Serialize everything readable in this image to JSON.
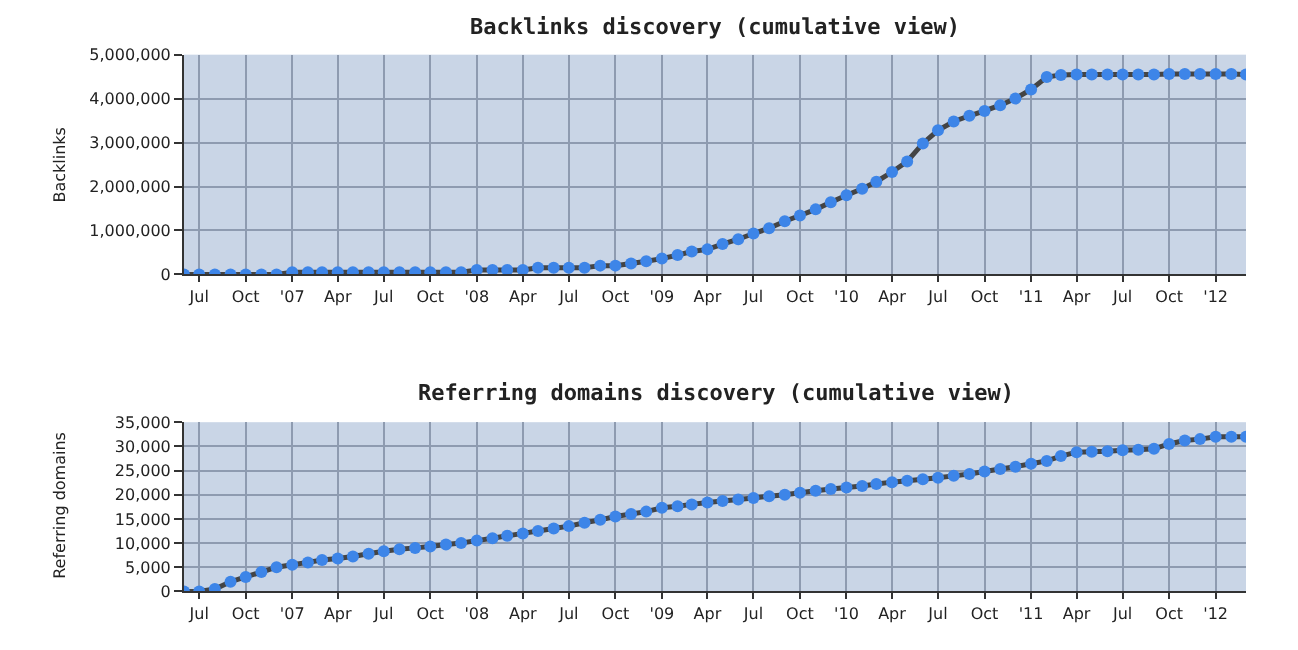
{
  "chart_data": [
    {
      "type": "line",
      "title": "Backlinks discovery (cumulative view)",
      "ylabel": "Backlinks",
      "grid": true,
      "marker": "circle",
      "line_style": "solid",
      "xlim": [
        "2006-06",
        "2012-03"
      ],
      "ylim": [
        0,
        5000000
      ],
      "yticks": [
        {
          "value": 0,
          "label": "0"
        },
        {
          "value": 1000000,
          "label": "1,000,000"
        },
        {
          "value": 2000000,
          "label": "2,000,000"
        },
        {
          "value": 3000000,
          "label": "3,000,000"
        },
        {
          "value": 4000000,
          "label": "4,000,000"
        },
        {
          "value": 5000000,
          "label": "5,000,000"
        }
      ],
      "xticks": [
        {
          "value": "2006-07",
          "label": "Jul"
        },
        {
          "value": "2006-10",
          "label": "Oct"
        },
        {
          "value": "2007-01",
          "label": "'07"
        },
        {
          "value": "2007-04",
          "label": "Apr"
        },
        {
          "value": "2007-07",
          "label": "Jul"
        },
        {
          "value": "2007-10",
          "label": "Oct"
        },
        {
          "value": "2008-01",
          "label": "'08"
        },
        {
          "value": "2008-04",
          "label": "Apr"
        },
        {
          "value": "2008-07",
          "label": "Jul"
        },
        {
          "value": "2008-10",
          "label": "Oct"
        },
        {
          "value": "2009-01",
          "label": "'09"
        },
        {
          "value": "2009-04",
          "label": "Apr"
        },
        {
          "value": "2009-07",
          "label": "Jul"
        },
        {
          "value": "2009-10",
          "label": "Oct"
        },
        {
          "value": "2010-01",
          "label": "'10"
        },
        {
          "value": "2010-04",
          "label": "Apr"
        },
        {
          "value": "2010-07",
          "label": "Jul"
        },
        {
          "value": "2010-10",
          "label": "Oct"
        },
        {
          "value": "2011-01",
          "label": "'11"
        },
        {
          "value": "2011-04",
          "label": "Apr"
        },
        {
          "value": "2011-07",
          "label": "Jul"
        },
        {
          "value": "2011-10",
          "label": "Oct"
        },
        {
          "value": "2012-01",
          "label": "'12"
        }
      ],
      "series": [
        {
          "color": "#3d85e8",
          "x": [
            "2006-06",
            "2006-07",
            "2006-08",
            "2006-09",
            "2006-10",
            "2006-11",
            "2006-12",
            "2007-01",
            "2007-02",
            "2007-03",
            "2007-04",
            "2007-05",
            "2007-06",
            "2007-07",
            "2007-08",
            "2007-09",
            "2007-10",
            "2007-11",
            "2007-12",
            "2008-01",
            "2008-02",
            "2008-03",
            "2008-04",
            "2008-05",
            "2008-06",
            "2008-07",
            "2008-08",
            "2008-09",
            "2008-10",
            "2008-11",
            "2008-12",
            "2009-01",
            "2009-02",
            "2009-03",
            "2009-04",
            "2009-05",
            "2009-06",
            "2009-07",
            "2009-08",
            "2009-09",
            "2009-10",
            "2009-11",
            "2009-12",
            "2010-01",
            "2010-02",
            "2010-03",
            "2010-04",
            "2010-05",
            "2010-06",
            "2010-07",
            "2010-08",
            "2010-09",
            "2010-10",
            "2010-11",
            "2010-12",
            "2011-01",
            "2011-02",
            "2011-03",
            "2011-04",
            "2011-05",
            "2011-06",
            "2011-07",
            "2011-08",
            "2011-09",
            "2011-10",
            "2011-11",
            "2011-12",
            "2012-01",
            "2012-02",
            "2012-03"
          ],
          "values": [
            0,
            0,
            0,
            0,
            0,
            0,
            0,
            50000,
            50000,
            50000,
            50000,
            50000,
            50000,
            50000,
            50000,
            50000,
            50000,
            50000,
            50000,
            100000,
            100000,
            100000,
            100000,
            150000,
            150000,
            150000,
            150000,
            200000,
            200000,
            250000,
            300000,
            360000,
            440000,
            520000,
            570000,
            690000,
            800000,
            930000,
            1050000,
            1210000,
            1340000,
            1480000,
            1640000,
            1800000,
            1950000,
            2110000,
            2330000,
            2570000,
            2980000,
            3280000,
            3480000,
            3610000,
            3720000,
            3850000,
            4000000,
            4210000,
            4490000,
            4540000,
            4550000,
            4550000,
            4550000,
            4550000,
            4550000,
            4550000,
            4560000,
            4560000,
            4560000,
            4560000,
            4560000,
            4550000
          ]
        }
      ]
    },
    {
      "type": "line",
      "title": "Referring domains discovery (cumulative view)",
      "ylabel": "Referring domains",
      "grid": true,
      "marker": "circle",
      "line_style": "solid",
      "xlim": [
        "2006-06",
        "2012-03"
      ],
      "ylim": [
        0,
        35000
      ],
      "yticks": [
        {
          "value": 0,
          "label": "0"
        },
        {
          "value": 5000,
          "label": "5,000"
        },
        {
          "value": 10000,
          "label": "10,000"
        },
        {
          "value": 15000,
          "label": "15,000"
        },
        {
          "value": 20000,
          "label": "20,000"
        },
        {
          "value": 25000,
          "label": "25,000"
        },
        {
          "value": 30000,
          "label": "30,000"
        },
        {
          "value": 35000,
          "label": "35,000"
        }
      ],
      "xticks": [
        {
          "value": "2006-07",
          "label": "Jul"
        },
        {
          "value": "2006-10",
          "label": "Oct"
        },
        {
          "value": "2007-01",
          "label": "'07"
        },
        {
          "value": "2007-04",
          "label": "Apr"
        },
        {
          "value": "2007-07",
          "label": "Jul"
        },
        {
          "value": "2007-10",
          "label": "Oct"
        },
        {
          "value": "2008-01",
          "label": "'08"
        },
        {
          "value": "2008-04",
          "label": "Apr"
        },
        {
          "value": "2008-07",
          "label": "Jul"
        },
        {
          "value": "2008-10",
          "label": "Oct"
        },
        {
          "value": "2009-01",
          "label": "'09"
        },
        {
          "value": "2009-04",
          "label": "Apr"
        },
        {
          "value": "2009-07",
          "label": "Jul"
        },
        {
          "value": "2009-10",
          "label": "Oct"
        },
        {
          "value": "2010-01",
          "label": "'10"
        },
        {
          "value": "2010-04",
          "label": "Apr"
        },
        {
          "value": "2010-07",
          "label": "Jul"
        },
        {
          "value": "2010-10",
          "label": "Oct"
        },
        {
          "value": "2011-01",
          "label": "'11"
        },
        {
          "value": "2011-04",
          "label": "Apr"
        },
        {
          "value": "2011-07",
          "label": "Jul"
        },
        {
          "value": "2011-10",
          "label": "Oct"
        },
        {
          "value": "2012-01",
          "label": "'12"
        }
      ],
      "series": [
        {
          "color": "#3d85e8",
          "x": [
            "2006-06",
            "2006-07",
            "2006-08",
            "2006-09",
            "2006-10",
            "2006-11",
            "2006-12",
            "2007-01",
            "2007-02",
            "2007-03",
            "2007-04",
            "2007-05",
            "2007-06",
            "2007-07",
            "2007-08",
            "2007-09",
            "2007-10",
            "2007-11",
            "2007-12",
            "2008-01",
            "2008-02",
            "2008-03",
            "2008-04",
            "2008-05",
            "2008-06",
            "2008-07",
            "2008-08",
            "2008-09",
            "2008-10",
            "2008-11",
            "2008-12",
            "2009-01",
            "2009-02",
            "2009-03",
            "2009-04",
            "2009-05",
            "2009-06",
            "2009-07",
            "2009-08",
            "2009-09",
            "2009-10",
            "2009-11",
            "2009-12",
            "2010-01",
            "2010-02",
            "2010-03",
            "2010-04",
            "2010-05",
            "2010-06",
            "2010-07",
            "2010-08",
            "2010-09",
            "2010-10",
            "2010-11",
            "2010-12",
            "2011-01",
            "2011-02",
            "2011-03",
            "2011-04",
            "2011-05",
            "2011-06",
            "2011-07",
            "2011-08",
            "2011-09",
            "2011-10",
            "2011-11",
            "2011-12",
            "2012-01",
            "2012-02",
            "2012-03"
          ],
          "values": [
            0,
            0,
            500,
            2000,
            3000,
            4000,
            5000,
            5500,
            6000,
            6500,
            6800,
            7200,
            7800,
            8300,
            8700,
            9000,
            9300,
            9700,
            10000,
            10500,
            11000,
            11500,
            12000,
            12500,
            13000,
            13500,
            14200,
            14800,
            15500,
            16000,
            16500,
            17300,
            17600,
            18000,
            18400,
            18700,
            19000,
            19300,
            19700,
            20000,
            20400,
            20800,
            21200,
            21500,
            21800,
            22200,
            22600,
            22900,
            23200,
            23500,
            23900,
            24300,
            24800,
            25300,
            25800,
            26400,
            27000,
            28000,
            28800,
            28900,
            29000,
            29200,
            29300,
            29500,
            30500,
            31200,
            31500,
            32000,
            32000,
            32000
          ]
        }
      ]
    }
  ]
}
